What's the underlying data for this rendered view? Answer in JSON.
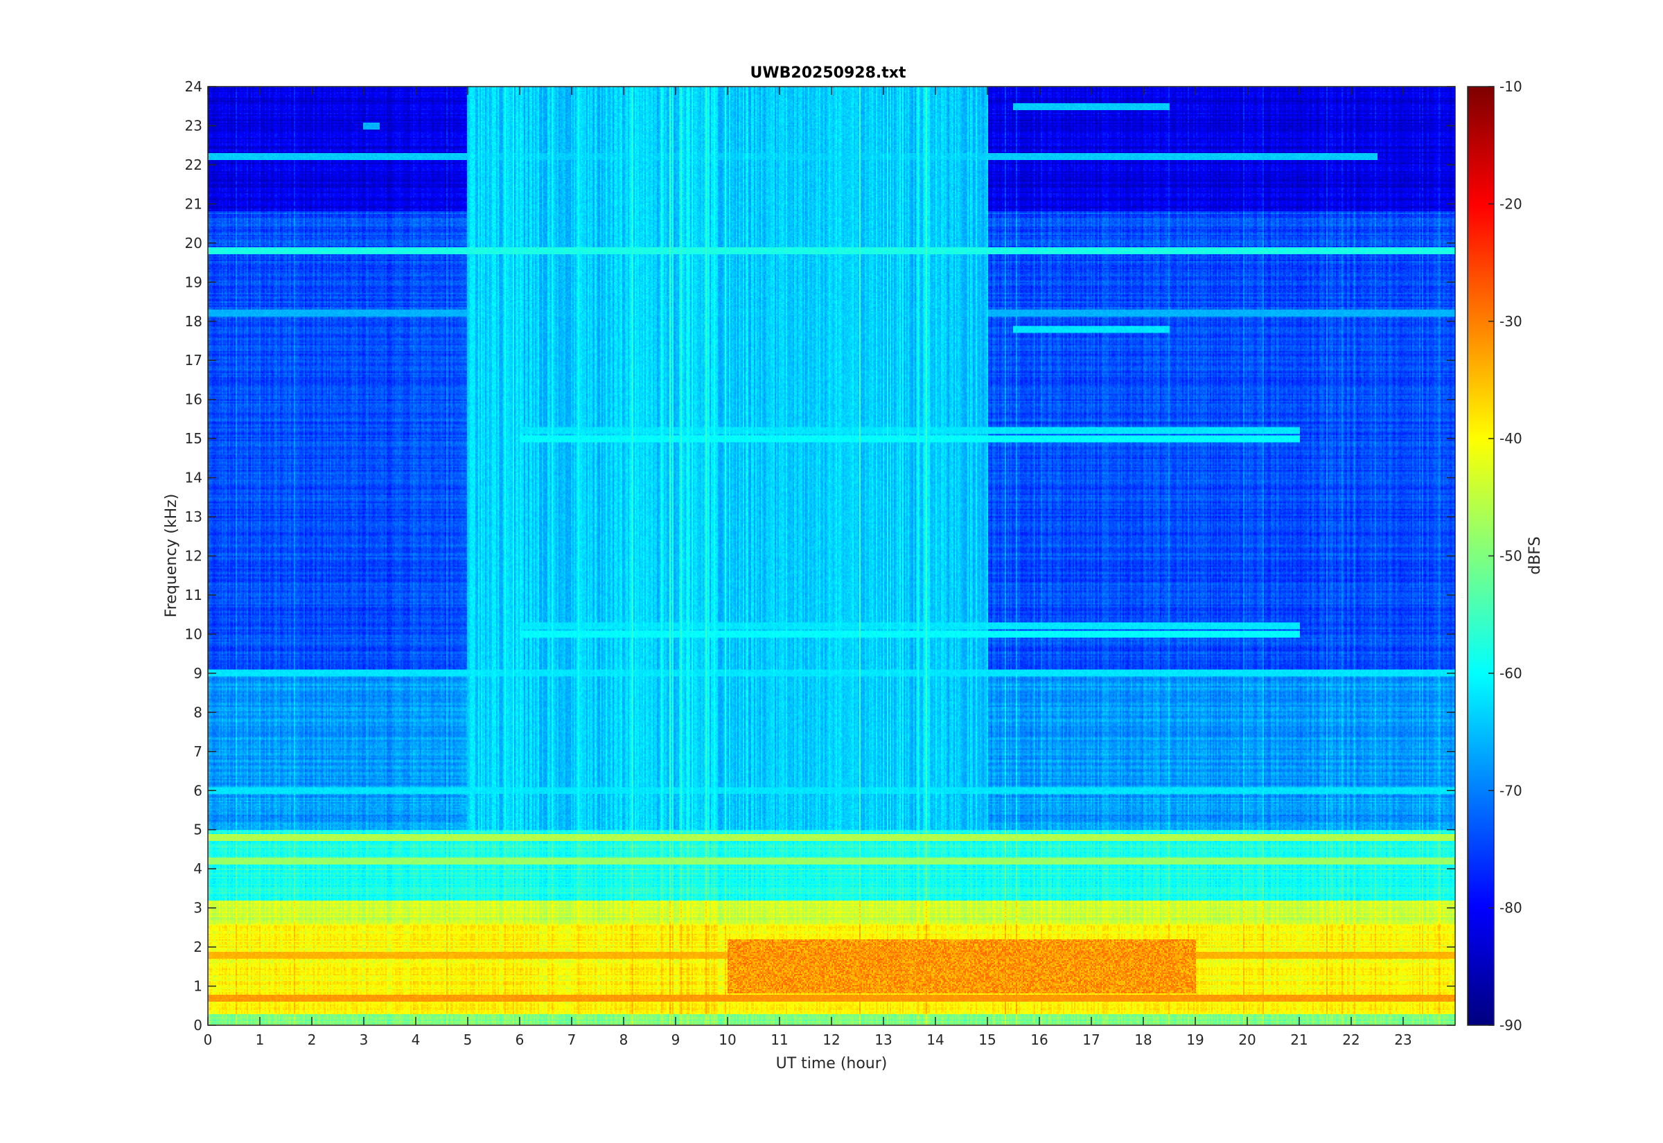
{
  "chart_data": {
    "type": "heatmap",
    "title": "UWB20250928.txt",
    "xlabel": "UT time (hour)",
    "ylabel": "Frequency (kHz)",
    "xlim": [
      0,
      24
    ],
    "ylim": [
      0,
      24
    ],
    "x_ticks": [
      "0",
      "1",
      "2",
      "3",
      "4",
      "5",
      "6",
      "7",
      "8",
      "9",
      "10",
      "11",
      "12",
      "13",
      "14",
      "15",
      "16",
      "17",
      "18",
      "19",
      "20",
      "21",
      "22",
      "23"
    ],
    "y_ticks": [
      "0",
      "1",
      "2",
      "3",
      "4",
      "5",
      "6",
      "7",
      "8",
      "9",
      "10",
      "11",
      "12",
      "13",
      "14",
      "15",
      "16",
      "17",
      "18",
      "19",
      "20",
      "21",
      "22",
      "23",
      "24"
    ],
    "colorbar": {
      "label": "dBFS",
      "colormap": "jet",
      "clim": [
        -90,
        -10
      ],
      "ticks": [
        "-90",
        "-80",
        "-70",
        "-60",
        "-50",
        "-40",
        "-30",
        "-20",
        "-10"
      ]
    },
    "background_level_dbfs": -76,
    "frequency_band_levels": [
      {
        "range_khz": [
          0,
          0.3
        ],
        "dbfs": -50
      },
      {
        "range_khz": [
          0.3,
          2.6
        ],
        "dbfs": -40
      },
      {
        "range_khz": [
          2.6,
          3.2
        ],
        "dbfs": -44
      },
      {
        "range_khz": [
          3.2,
          5.0
        ],
        "dbfs": -58
      },
      {
        "range_khz": [
          5.0,
          9.0
        ],
        "dbfs": -68
      },
      {
        "range_khz": [
          9.0,
          20.8
        ],
        "dbfs": -74
      },
      {
        "range_khz": [
          20.8,
          24.0
        ],
        "dbfs": -82
      }
    ],
    "horizontal_lines": [
      {
        "freq_khz": 0.7,
        "dbfs": -32,
        "time_range": [
          0,
          24
        ]
      },
      {
        "freq_khz": 1.8,
        "dbfs": -34,
        "time_range": [
          0,
          24
        ]
      },
      {
        "freq_khz": 4.2,
        "dbfs": -48,
        "time_range": [
          0,
          24
        ]
      },
      {
        "freq_khz": 4.8,
        "dbfs": -46,
        "time_range": [
          0,
          24
        ]
      },
      {
        "freq_khz": 6.0,
        "dbfs": -62,
        "time_range": [
          0,
          24
        ]
      },
      {
        "freq_khz": 9.0,
        "dbfs": -62,
        "time_range": [
          0,
          24
        ]
      },
      {
        "freq_khz": 10.0,
        "dbfs": -60,
        "time_range": [
          6,
          21
        ]
      },
      {
        "freq_khz": 10.2,
        "dbfs": -62,
        "time_range": [
          6,
          21
        ]
      },
      {
        "freq_khz": 15.0,
        "dbfs": -60,
        "time_range": [
          6,
          21
        ]
      },
      {
        "freq_khz": 15.2,
        "dbfs": -62,
        "time_range": [
          6,
          21
        ]
      },
      {
        "freq_khz": 17.8,
        "dbfs": -62,
        "time_range": [
          15.5,
          18.5
        ]
      },
      {
        "freq_khz": 18.2,
        "dbfs": -66,
        "time_range": [
          0,
          24
        ]
      },
      {
        "freq_khz": 19.8,
        "dbfs": -58,
        "time_range": [
          0,
          24
        ]
      },
      {
        "freq_khz": 22.2,
        "dbfs": -64,
        "time_range": [
          0,
          22.5
        ]
      },
      {
        "freq_khz": 23.0,
        "dbfs": -66,
        "time_range": [
          3.0,
          3.3
        ]
      },
      {
        "freq_khz": 23.5,
        "dbfs": -64,
        "time_range": [
          15.5,
          18.5
        ]
      }
    ],
    "hot_region": {
      "time_range": [
        10,
        19
      ],
      "freq_range_khz": [
        0.8,
        2.2
      ],
      "dbfs": -32
    },
    "broadband_activity": {
      "time_range": [
        5,
        15
      ],
      "freq_range_khz": [
        2,
        24
      ],
      "dbfs": -64
    }
  }
}
